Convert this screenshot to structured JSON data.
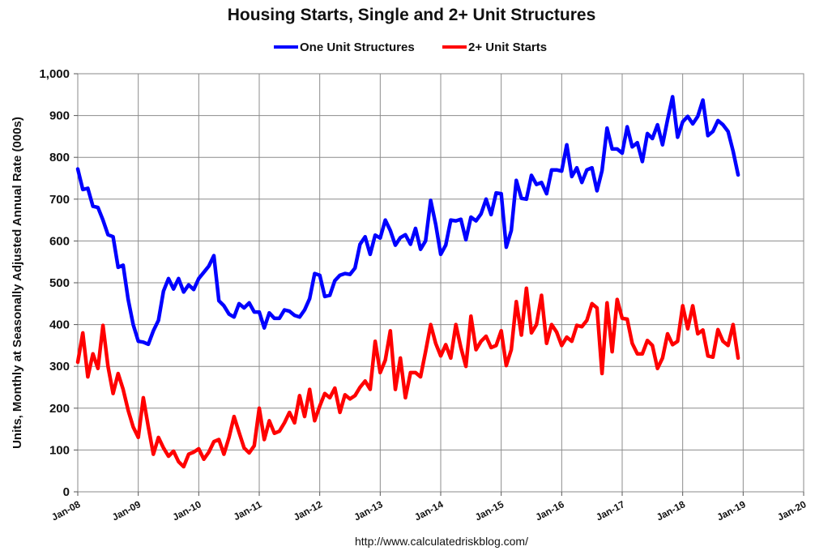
{
  "chart_data": {
    "type": "line",
    "title": "Housing Starts, Single and 2+ Unit Structures",
    "ylabel": "Units, Monthly at Seasonally Adjusted Annual Rate (000s)",
    "xlabel": "",
    "ylim": [
      0,
      1000
    ],
    "yticks": [
      0,
      100,
      200,
      300,
      400,
      500,
      600,
      700,
      800,
      900,
      1000
    ],
    "ytick_labels": [
      "0",
      "100",
      "200",
      "300",
      "400",
      "500",
      "600",
      "700",
      "800",
      "900",
      "1,000"
    ],
    "xtick_labels": [
      "Jan-08",
      "Jan-09",
      "Jan-10",
      "Jan-11",
      "Jan-12",
      "Jan-13",
      "Jan-14",
      "Jan-15",
      "Jan-16",
      "Jan-17",
      "Jan-18",
      "Jan-19",
      "Jan-20"
    ],
    "x_start": "Jan-08",
    "grid": true,
    "legend_position": "top",
    "source": "http://www.calculatedriskblog.com/",
    "series": [
      {
        "name": "One Unit Structures",
        "color": "#0000FF",
        "values": [
          772,
          723,
          726,
          683,
          680,
          650,
          615,
          610,
          537,
          542,
          460,
          400,
          360,
          358,
          353,
          385,
          410,
          480,
          510,
          485,
          510,
          478,
          495,
          484,
          510,
          525,
          540,
          565,
          457,
          445,
          425,
          418,
          450,
          440,
          452,
          430,
          430,
          392,
          428,
          415,
          415,
          435,
          432,
          422,
          418,
          435,
          462,
          522,
          518,
          467,
          470,
          505,
          518,
          522,
          520,
          535,
          592,
          610,
          568,
          614,
          607,
          650,
          625,
          590,
          608,
          615,
          592,
          630,
          580,
          600,
          697,
          640,
          568,
          590,
          650,
          648,
          652,
          603,
          657,
          648,
          665,
          700,
          663,
          715,
          713,
          585,
          625,
          745,
          702,
          700,
          757,
          735,
          740,
          713,
          770,
          770,
          767,
          830,
          754,
          775,
          740,
          770,
          775,
          720,
          768,
          870,
          820,
          820,
          810,
          873,
          825,
          835,
          790,
          857,
          845,
          878,
          830,
          890,
          945,
          848,
          885,
          898,
          880,
          898,
          937,
          852,
          862,
          888,
          878,
          862,
          815,
          758
        ]
      },
      {
        "name": "2+ Unit Starts",
        "color": "#FF0000",
        "values": [
          310,
          380,
          275,
          330,
          295,
          398,
          300,
          235,
          283,
          245,
          195,
          155,
          130,
          225,
          155,
          90,
          130,
          105,
          85,
          97,
          72,
          60,
          90,
          95,
          103,
          78,
          95,
          120,
          125,
          90,
          130,
          180,
          142,
          105,
          93,
          110,
          200,
          125,
          170,
          140,
          145,
          165,
          190,
          165,
          230,
          180,
          245,
          170,
          205,
          235,
          225,
          248,
          190,
          232,
          222,
          230,
          250,
          265,
          245,
          360,
          285,
          315,
          385,
          245,
          320,
          225,
          285,
          285,
          275,
          335,
          400,
          355,
          325,
          352,
          320,
          400,
          345,
          300,
          420,
          340,
          360,
          372,
          345,
          350,
          385,
          302,
          340,
          455,
          375,
          487,
          380,
          400,
          470,
          355,
          400,
          382,
          350,
          370,
          360,
          398,
          395,
          410,
          450,
          440,
          283,
          452,
          335,
          460,
          415,
          413,
          355,
          330,
          330,
          362,
          350,
          295,
          320,
          378,
          352,
          360,
          445,
          390,
          445,
          378,
          387,
          325,
          322,
          388,
          360,
          350,
          400,
          320
        ]
      }
    ]
  }
}
